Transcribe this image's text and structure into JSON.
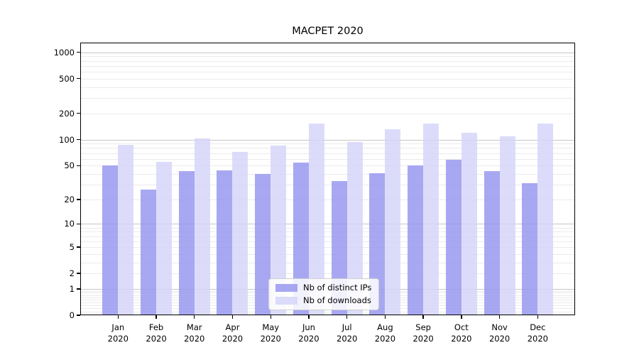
{
  "chart_data": {
    "type": "bar",
    "title": "MACPET 2020",
    "months": [
      "Jan",
      "Feb",
      "Mar",
      "Apr",
      "May",
      "Jun",
      "Jul",
      "Aug",
      "Sep",
      "Oct",
      "Nov",
      "Dec"
    ],
    "year_label": "2020",
    "categories": [
      "Jan 2020",
      "Feb 2020",
      "Mar 2020",
      "Apr 2020",
      "May 2020",
      "Jun 2020",
      "Jul 2020",
      "Aug 2020",
      "Sep 2020",
      "Oct 2020",
      "Nov 2020",
      "Dec 2020"
    ],
    "series": [
      {
        "name": "Nb of distinct IPs",
        "color": "#9595ef",
        "values": [
          50,
          26,
          43,
          44,
          40,
          54,
          33,
          41,
          50,
          58,
          43,
          31
        ]
      },
      {
        "name": "Nb of downloads",
        "color": "#d4d4f9",
        "values": [
          87,
          55,
          103,
          72,
          85,
          152,
          93,
          132,
          152,
          120,
          109,
          154
        ]
      }
    ],
    "yscale": "symlog",
    "y_ticks": [
      1000,
      500,
      200,
      100,
      50,
      20,
      10,
      5,
      2,
      1,
      0
    ],
    "ylim": [
      0,
      1150
    ],
    "xlabel": "",
    "ylabel": "",
    "grid": true,
    "legend_position": "lower center",
    "bar_opacity": 0.82,
    "colors": {
      "grid_minor": "#ebebeb",
      "grid_major": "#c6c6c6",
      "axis": "#000000",
      "legend_border": "#cfcfcf",
      "background": "#ffffff"
    }
  }
}
